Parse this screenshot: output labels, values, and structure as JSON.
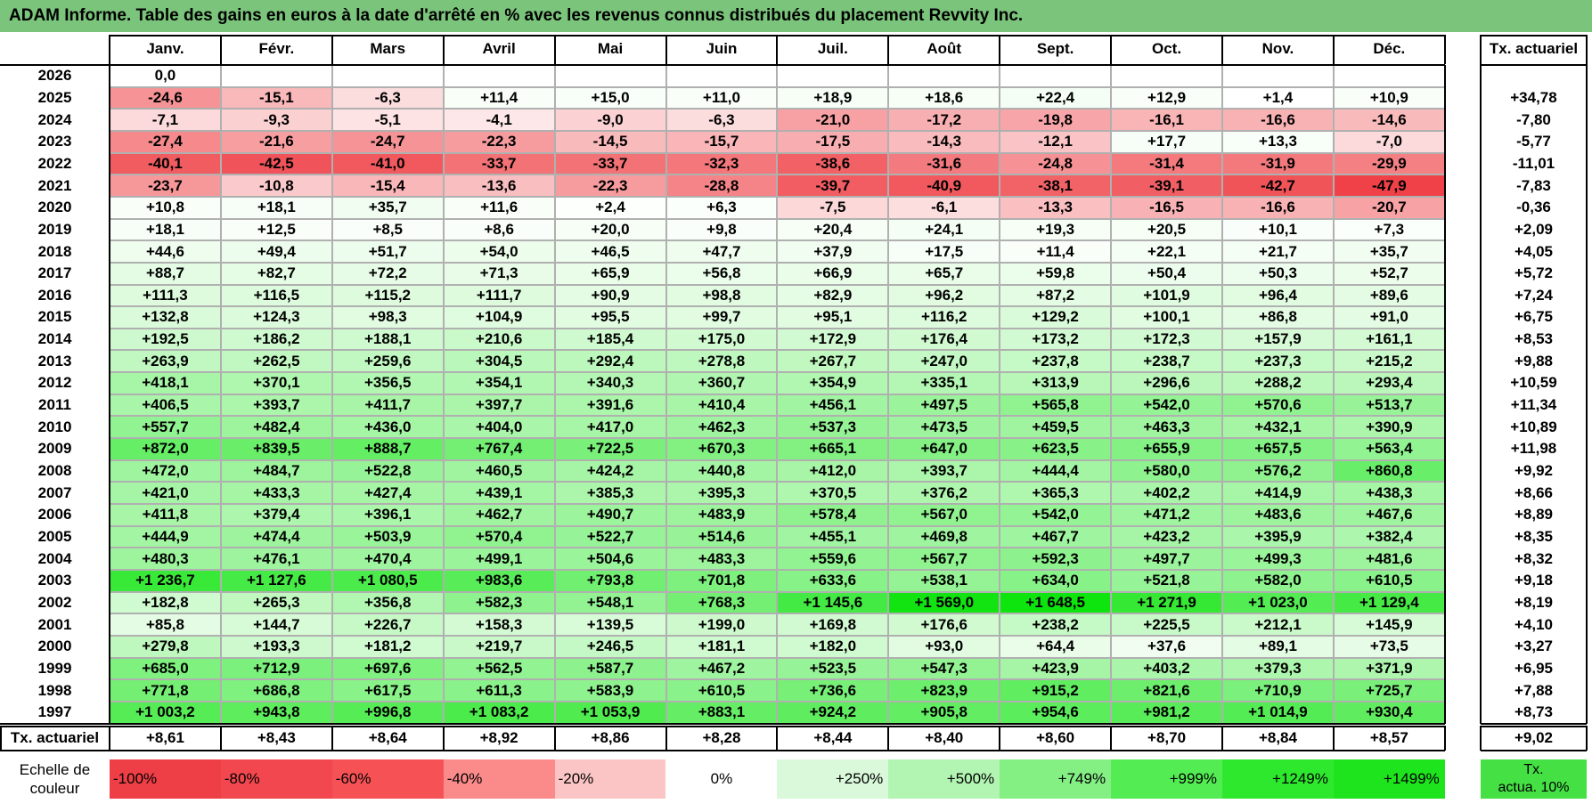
{
  "title": "ADAM Informe. Table des gains en euros à la date d'arrêté en % avec les revenus connus distribués du placement Revvity Inc.",
  "chart_data": {
    "type": "table",
    "columns": [
      "Janv.",
      "Févr.",
      "Mars",
      "Avril",
      "Mai",
      "Juin",
      "Juil.",
      "Août",
      "Sept.",
      "Oct.",
      "Nov.",
      "Déc."
    ],
    "summary_column": "Tx. actuariel",
    "rows": [
      {
        "year": "2026",
        "values": [
          "0,0",
          "",
          "",
          "",
          "",
          "",
          "",
          "",
          "",
          "",
          "",
          ""
        ],
        "rate": ""
      },
      {
        "year": "2025",
        "values": [
          "-24,6",
          "-15,1",
          "-6,3",
          "+11,4",
          "+15,0",
          "+11,0",
          "+18,9",
          "+18,6",
          "+22,4",
          "+12,9",
          "+1,4",
          "+10,9"
        ],
        "rate": "+34,78"
      },
      {
        "year": "2024",
        "values": [
          "-7,1",
          "-9,3",
          "-5,1",
          "-4,1",
          "-9,0",
          "-6,3",
          "-21,0",
          "-17,2",
          "-19,8",
          "-16,1",
          "-16,6",
          "-14,6"
        ],
        "rate": "-7,80"
      },
      {
        "year": "2023",
        "values": [
          "-27,4",
          "-21,6",
          "-24,7",
          "-22,3",
          "-14,5",
          "-15,7",
          "-17,5",
          "-14,3",
          "-12,1",
          "+17,7",
          "+13,3",
          "-7,0"
        ],
        "rate": "-5,77"
      },
      {
        "year": "2022",
        "values": [
          "-40,1",
          "-42,5",
          "-41,0",
          "-33,7",
          "-33,7",
          "-32,3",
          "-38,6",
          "-31,6",
          "-24,8",
          "-31,4",
          "-31,9",
          "-29,9"
        ],
        "rate": "-11,01"
      },
      {
        "year": "2021",
        "values": [
          "-23,7",
          "-10,8",
          "-15,4",
          "-13,6",
          "-22,3",
          "-28,8",
          "-39,7",
          "-40,9",
          "-38,1",
          "-39,1",
          "-42,7",
          "-47,9"
        ],
        "rate": "-7,83"
      },
      {
        "year": "2020",
        "values": [
          "+10,8",
          "+18,1",
          "+35,7",
          "+11,6",
          "+2,4",
          "+6,3",
          "-7,5",
          "-6,1",
          "-13,3",
          "-16,5",
          "-16,6",
          "-20,7"
        ],
        "rate": "-0,36"
      },
      {
        "year": "2019",
        "values": [
          "+18,1",
          "+12,5",
          "+8,5",
          "+8,6",
          "+20,0",
          "+9,8",
          "+20,4",
          "+24,1",
          "+19,3",
          "+20,5",
          "+10,1",
          "+7,3"
        ],
        "rate": "+2,09"
      },
      {
        "year": "2018",
        "values": [
          "+44,6",
          "+49,4",
          "+51,7",
          "+54,0",
          "+46,5",
          "+47,7",
          "+37,9",
          "+17,5",
          "+11,4",
          "+22,1",
          "+21,7",
          "+35,7"
        ],
        "rate": "+4,05"
      },
      {
        "year": "2017",
        "values": [
          "+88,7",
          "+82,7",
          "+72,2",
          "+71,3",
          "+65,9",
          "+56,8",
          "+66,9",
          "+65,7",
          "+59,8",
          "+50,4",
          "+50,3",
          "+52,7"
        ],
        "rate": "+5,72"
      },
      {
        "year": "2016",
        "values": [
          "+111,3",
          "+116,5",
          "+115,2",
          "+111,7",
          "+90,9",
          "+98,8",
          "+82,9",
          "+96,2",
          "+87,2",
          "+101,9",
          "+96,4",
          "+89,6"
        ],
        "rate": "+7,24"
      },
      {
        "year": "2015",
        "values": [
          "+132,8",
          "+124,3",
          "+98,3",
          "+104,9",
          "+95,5",
          "+99,7",
          "+95,1",
          "+116,2",
          "+129,2",
          "+100,1",
          "+86,8",
          "+91,0"
        ],
        "rate": "+6,75"
      },
      {
        "year": "2014",
        "values": [
          "+192,5",
          "+186,2",
          "+188,1",
          "+210,6",
          "+185,4",
          "+175,0",
          "+172,9",
          "+176,4",
          "+173,2",
          "+172,3",
          "+157,9",
          "+161,1"
        ],
        "rate": "+8,53"
      },
      {
        "year": "2013",
        "values": [
          "+263,9",
          "+262,5",
          "+259,6",
          "+304,5",
          "+292,4",
          "+278,8",
          "+267,7",
          "+247,0",
          "+237,8",
          "+238,7",
          "+237,3",
          "+215,2"
        ],
        "rate": "+9,88"
      },
      {
        "year": "2012",
        "values": [
          "+418,1",
          "+370,1",
          "+356,5",
          "+354,1",
          "+340,3",
          "+360,7",
          "+354,9",
          "+335,1",
          "+313,9",
          "+296,6",
          "+288,2",
          "+293,4"
        ],
        "rate": "+10,59"
      },
      {
        "year": "2011",
        "values": [
          "+406,5",
          "+393,7",
          "+411,7",
          "+397,7",
          "+391,6",
          "+410,4",
          "+456,1",
          "+497,5",
          "+565,8",
          "+542,0",
          "+570,6",
          "+513,7"
        ],
        "rate": "+11,34"
      },
      {
        "year": "2010",
        "values": [
          "+557,7",
          "+482,4",
          "+436,0",
          "+404,0",
          "+417,0",
          "+462,3",
          "+537,3",
          "+473,5",
          "+459,5",
          "+463,3",
          "+432,1",
          "+390,9"
        ],
        "rate": "+10,89"
      },
      {
        "year": "2009",
        "values": [
          "+872,0",
          "+839,5",
          "+888,7",
          "+767,4",
          "+722,5",
          "+670,3",
          "+665,1",
          "+647,0",
          "+623,5",
          "+655,9",
          "+657,5",
          "+563,4"
        ],
        "rate": "+11,98"
      },
      {
        "year": "2008",
        "values": [
          "+472,0",
          "+484,7",
          "+522,8",
          "+460,5",
          "+424,2",
          "+440,8",
          "+412,0",
          "+393,7",
          "+444,4",
          "+580,0",
          "+576,2",
          "+860,8"
        ],
        "rate": "+9,92"
      },
      {
        "year": "2007",
        "values": [
          "+421,0",
          "+433,3",
          "+427,4",
          "+439,1",
          "+385,3",
          "+395,3",
          "+370,5",
          "+376,2",
          "+365,3",
          "+402,2",
          "+414,9",
          "+438,3"
        ],
        "rate": "+8,66"
      },
      {
        "year": "2006",
        "values": [
          "+411,8",
          "+379,4",
          "+396,1",
          "+462,7",
          "+490,7",
          "+483,9",
          "+578,4",
          "+567,0",
          "+542,0",
          "+471,2",
          "+483,6",
          "+467,6"
        ],
        "rate": "+8,89"
      },
      {
        "year": "2005",
        "values": [
          "+444,9",
          "+474,4",
          "+503,9",
          "+570,4",
          "+522,7",
          "+514,6",
          "+455,1",
          "+469,8",
          "+467,7",
          "+423,2",
          "+395,9",
          "+382,4"
        ],
        "rate": "+8,35"
      },
      {
        "year": "2004",
        "values": [
          "+480,3",
          "+476,1",
          "+470,4",
          "+499,1",
          "+504,6",
          "+483,3",
          "+559,6",
          "+567,7",
          "+592,3",
          "+497,7",
          "+499,3",
          "+481,6"
        ],
        "rate": "+8,32"
      },
      {
        "year": "2003",
        "values": [
          "+1 236,7",
          "+1 127,6",
          "+1 080,5",
          "+983,6",
          "+793,8",
          "+701,8",
          "+633,6",
          "+538,1",
          "+634,0",
          "+521,8",
          "+582,0",
          "+610,5"
        ],
        "rate": "+9,18"
      },
      {
        "year": "2002",
        "values": [
          "+182,8",
          "+265,3",
          "+356,8",
          "+582,3",
          "+548,1",
          "+768,3",
          "+1 145,6",
          "+1 569,0",
          "+1 648,5",
          "+1 271,9",
          "+1 023,0",
          "+1 129,4"
        ],
        "rate": "+8,19"
      },
      {
        "year": "2001",
        "values": [
          "+85,8",
          "+144,7",
          "+226,7",
          "+158,3",
          "+139,5",
          "+199,0",
          "+169,8",
          "+176,6",
          "+238,2",
          "+225,5",
          "+212,1",
          "+145,9"
        ],
        "rate": "+4,10"
      },
      {
        "year": "2000",
        "values": [
          "+279,8",
          "+193,3",
          "+181,2",
          "+219,7",
          "+246,5",
          "+181,1",
          "+182,0",
          "+93,0",
          "+64,4",
          "+37,6",
          "+89,1",
          "+73,5"
        ],
        "rate": "+3,27"
      },
      {
        "year": "1999",
        "values": [
          "+685,0",
          "+712,9",
          "+697,6",
          "+562,5",
          "+587,7",
          "+467,2",
          "+523,5",
          "+547,3",
          "+423,9",
          "+403,2",
          "+379,3",
          "+371,9"
        ],
        "rate": "+6,95"
      },
      {
        "year": "1998",
        "values": [
          "+771,8",
          "+686,8",
          "+617,5",
          "+611,3",
          "+583,9",
          "+610,5",
          "+736,6",
          "+823,9",
          "+915,2",
          "+821,6",
          "+710,9",
          "+725,7"
        ],
        "rate": "+7,88"
      },
      {
        "year": "1997",
        "values": [
          "+1 003,2",
          "+943,8",
          "+996,8",
          "+1 083,2",
          "+1 053,9",
          "+883,1",
          "+924,2",
          "+905,8",
          "+954,6",
          "+981,2",
          "+1 014,9",
          "+930,4"
        ],
        "rate": "+8,73"
      }
    ],
    "footer": {
      "label": "Tx. actuariel",
      "values": [
        "+8,61",
        "+8,43",
        "+8,64",
        "+8,92",
        "+8,86",
        "+8,28",
        "+8,44",
        "+8,40",
        "+8,60",
        "+8,70",
        "+8,84",
        "+8,57"
      ],
      "total": "+9,02"
    },
    "legend": {
      "label": "Echelle de couleur",
      "items": [
        {
          "text": "-100%",
          "color": "#ef3f46"
        },
        {
          "text": "-80%",
          "color": "#f2474e"
        },
        {
          "text": "-60%",
          "color": "#f65256"
        },
        {
          "text": "-40%",
          "color": "#fb8b8b"
        },
        {
          "text": "-20%",
          "color": "#fcc5c5"
        },
        {
          "text": "0%",
          "color": "#ffffff"
        },
        {
          "text": "+250%",
          "color": "#daf9da"
        },
        {
          "text": "+500%",
          "color": "#b2f4b2"
        },
        {
          "text": "+749%",
          "color": "#84f084"
        },
        {
          "text": "+999%",
          "color": "#53ec53"
        },
        {
          "text": "+1249%",
          "color": "#2ee82e"
        },
        {
          "text": "+1499%",
          "color": "#1ee41e"
        }
      ],
      "rate_item": {
        "text": "Tx. actua. 10%",
        "color": "#44e044"
      }
    }
  }
}
